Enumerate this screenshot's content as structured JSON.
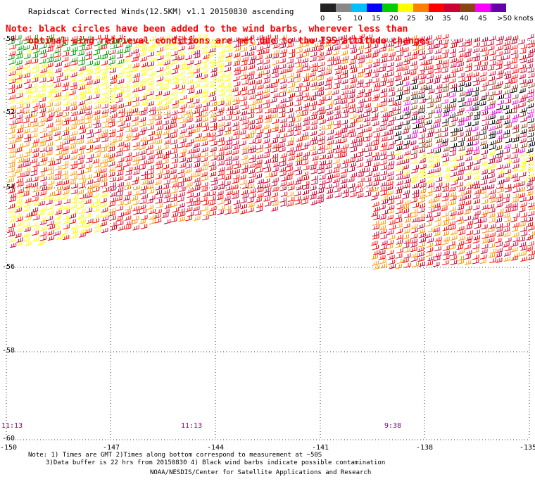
{
  "header": {
    "title": "Rapidscat Corrected Winds(12.5KM) v1.1 20150830 ascending"
  },
  "legend": {
    "unit": "knots",
    "labels": [
      "0",
      "5",
      "10",
      "15",
      "20",
      "25",
      "30",
      "35",
      "40",
      "45",
      ">50 knots"
    ],
    "colors": [
      "#222222",
      "#888888",
      "#00bfff",
      "#0000ff",
      "#00cc00",
      "#ffff00",
      "#ff8000",
      "#ff0000",
      "#cc0033",
      "#8b4513",
      "#ff00ff",
      "#6600aa"
    ]
  },
  "note": {
    "line1": "Note: black circles have been added to the wind barbs, wherever less than",
    "line2": "optimal wind retrieval conditions are met due to the ISS attitude changes"
  },
  "axes": {
    "lat_labels": [
      "-50",
      "-52",
      "-54",
      "-56",
      "-58",
      "-60"
    ],
    "lon_labels": [
      "-150",
      "-147",
      "-144",
      "-141",
      "-138",
      "-135"
    ]
  },
  "times": [
    "11:13",
    "11:13",
    "9:38"
  ],
  "footer": {
    "note1": "Note: 1) Times are GMT 2)Times along bottom correspond to measurement at ~50S",
    "note2": "3)Data buffer is 22 hrs from 20150830 4) Black wind barbs indicate possible contamination",
    "credit": "NOAA/NESDIS/Center for Satellite Applications and Research"
  },
  "colors": {
    "note": "#ff0000",
    "time": "#800080",
    "wind_speed_scale": [
      "#222222",
      "#888888",
      "#00bfff",
      "#0000ff",
      "#00cc00",
      "#ffff00",
      "#ff8000",
      "#ff0000",
      "#cc0033",
      "#8b4513",
      "#ff00ff",
      "#6600aa"
    ]
  }
}
